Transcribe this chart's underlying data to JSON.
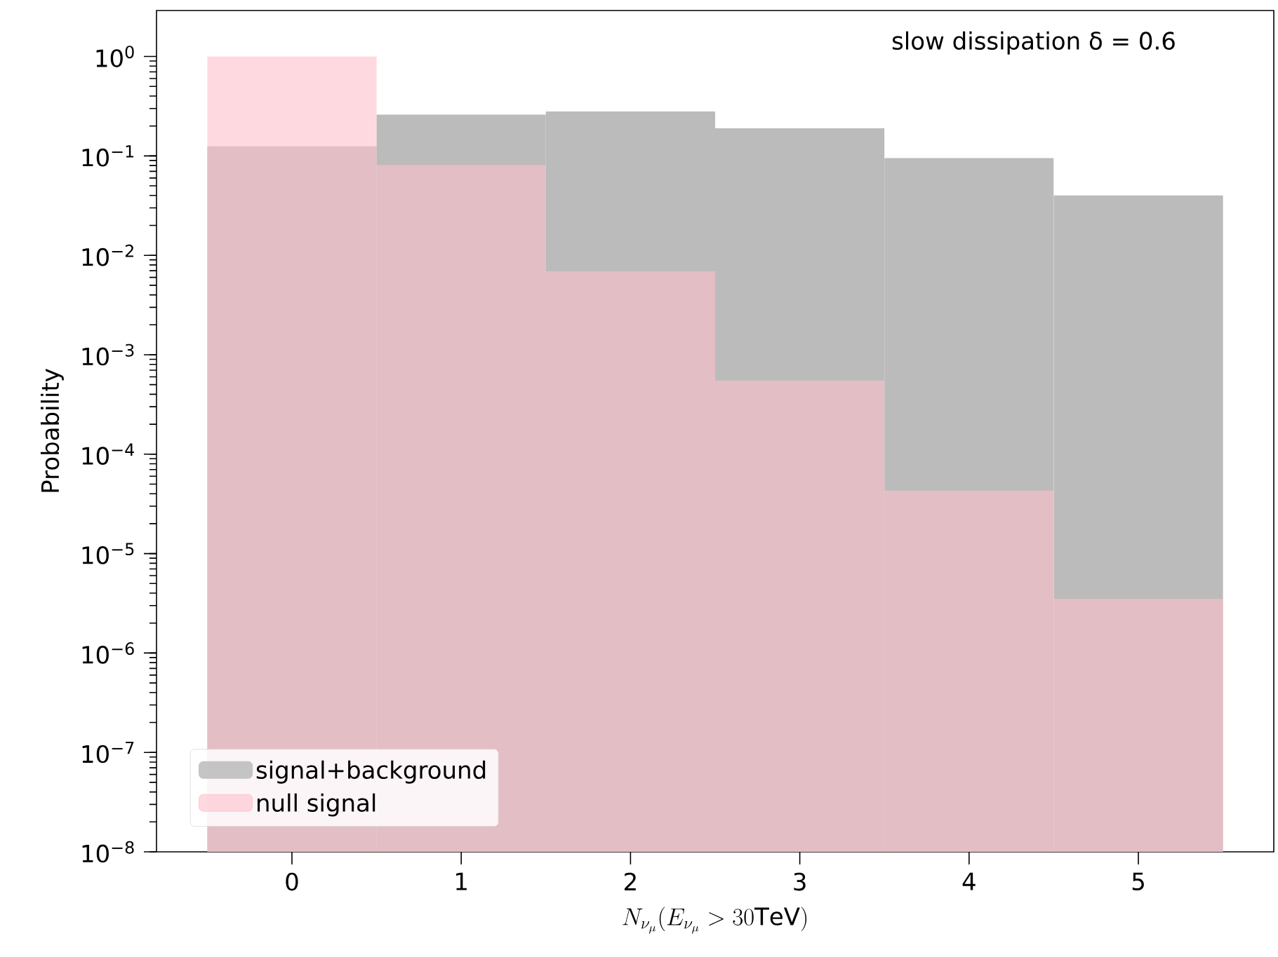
{
  "chart_data": {
    "type": "histogram",
    "xlabel": "N_{\\nu_\\mu}(E_{\\nu_\\mu}>30\\mathrm{TeV})",
    "ylabel": "Probability",
    "annotations": [
      "slow dissipation δ = 0.6"
    ],
    "bins": [
      -0.5,
      0.5,
      1.5,
      2.5,
      3.5,
      4.5,
      5.5
    ],
    "series": [
      {
        "name": "signal+background",
        "color": "#bbbbbb",
        "values": [
          0.125,
          0.26,
          0.28,
          0.19,
          0.095,
          0.04
        ]
      },
      {
        "name": "null signal",
        "color": "#ffc0cb",
        "values": [
          1.0,
          0.081,
          0.0069,
          0.00055,
          4.3e-05,
          3.5e-06
        ]
      }
    ],
    "xlim": [
      -0.8,
      5.8
    ],
    "ylim": [
      1e-08,
      2.9
    ],
    "log": true,
    "xticks": [
      0,
      1,
      2,
      3,
      4,
      5
    ],
    "yticks": [
      {
        "value": 1e-08,
        "label": "10$^{−8}$"
      },
      {
        "value": 1e-07,
        "label": "10$^{−7}$"
      },
      {
        "value": 1e-06,
        "label": "10$^{−6}$"
      },
      {
        "value": 1e-05,
        "label": "10$^{−5}$"
      },
      {
        "value": 0.0001,
        "label": "10$^{−4}$"
      },
      {
        "value": 0.001,
        "label": "10$^{−3}$"
      },
      {
        "value": 0.01,
        "label": "10$^{−2}$"
      },
      {
        "value": 0.1,
        "label": "10$^{−1}$"
      },
      {
        "value": 1,
        "label": "10$^{0}$"
      }
    ],
    "legend": "bottom left"
  }
}
